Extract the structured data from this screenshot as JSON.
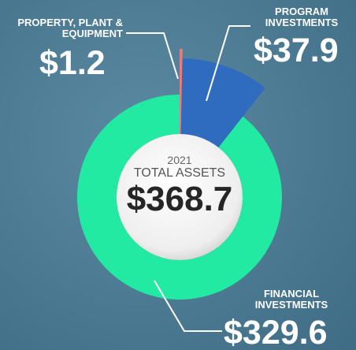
{
  "chart_data": {
    "type": "pie",
    "donut": true,
    "categories": [
      "PROPERTY, PLANT & EQUIPMENT",
      "PROGRAM INVESTMENTS",
      "FINANCIAL INVESTMENTS"
    ],
    "values": [
      1.2,
      37.9,
      329.6
    ],
    "value_labels": [
      "$1.2",
      "$37.9",
      "$329.6"
    ],
    "colors": [
      "#e47d7d",
      "#2f6cc0",
      "#22eaa2"
    ],
    "center_text": [
      "2021",
      "TOTAL ASSETS",
      "$368.7"
    ]
  }
}
